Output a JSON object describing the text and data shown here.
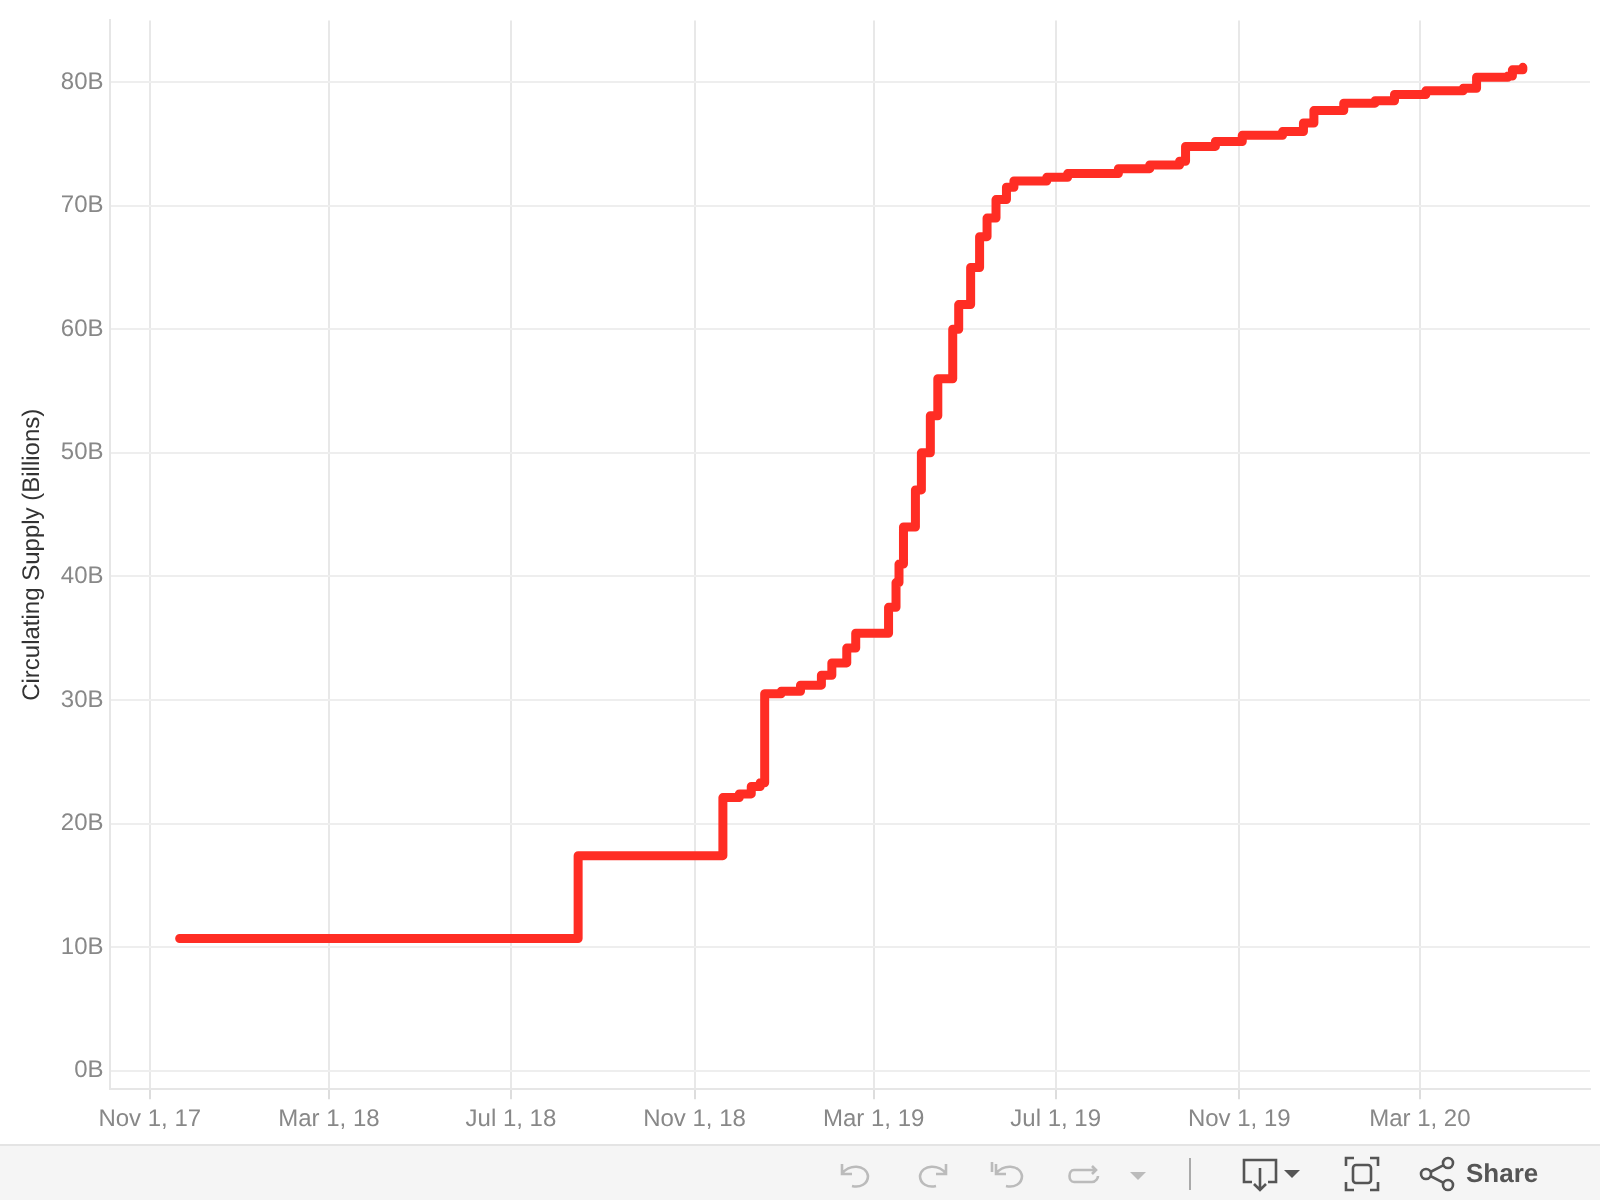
{
  "chart_data": {
    "type": "step",
    "ylabel": "Circulating Supply (Billions)",
    "x": [
      "2017-11-21",
      "2018-08-15",
      "2018-11-20",
      "2018-12-01",
      "2018-12-09",
      "2018-12-15",
      "2018-12-18",
      "2018-12-29",
      "2019-01-11",
      "2019-01-25",
      "2019-02-01",
      "2019-02-11",
      "2019-02-17",
      "2019-03-11",
      "2019-03-16",
      "2019-03-18",
      "2019-03-21",
      "2019-03-29",
      "2019-04-02",
      "2019-04-08",
      "2019-04-13",
      "2019-04-23",
      "2019-04-27",
      "2019-05-05",
      "2019-05-11",
      "2019-05-16",
      "2019-05-22",
      "2019-05-29",
      "2019-06-03",
      "2019-06-25",
      "2019-07-09",
      "2019-08-12",
      "2019-09-02",
      "2019-09-22",
      "2019-09-26",
      "2019-10-16",
      "2019-11-03",
      "2019-11-30",
      "2019-12-14",
      "2019-12-21",
      "2020-01-10",
      "2020-01-31",
      "2020-02-13",
      "2020-03-05",
      "2020-03-30",
      "2020-04-08",
      "2020-04-29",
      "2020-05-02",
      "2020-05-09"
    ],
    "series": [
      {
        "color": "#ff2d24",
        "values": [
          10.7,
          17.4,
          22.1,
          22.4,
          23.0,
          23.3,
          30.5,
          30.7,
          31.2,
          32.0,
          33.0,
          34.2,
          35.4,
          37.5,
          39.5,
          41.0,
          44.0,
          47.0,
          50.0,
          53.0,
          56.0,
          60.0,
          62.0,
          65.0,
          67.5,
          69.0,
          70.5,
          71.5,
          72.0,
          72.3,
          72.6,
          73.0,
          73.3,
          73.6,
          74.8,
          75.2,
          75.7,
          76.0,
          76.7,
          77.7,
          78.3,
          78.5,
          79.0,
          79.3,
          79.5,
          80.4,
          80.5,
          81.0,
          81.2
        ]
      }
    ],
    "xlim": [
      "2017-10-05",
      "2020-06-23"
    ],
    "xticks": [
      {
        "value": "2017-11-01",
        "label": "Nov 1, 17"
      },
      {
        "value": "2018-03-01",
        "label": "Mar 1, 18"
      },
      {
        "value": "2018-07-01",
        "label": "Jul 1, 18"
      },
      {
        "value": "2018-11-01",
        "label": "Nov 1, 18"
      },
      {
        "value": "2019-03-01",
        "label": "Mar 1, 19"
      },
      {
        "value": "2019-07-01",
        "label": "Jul 1, 19"
      },
      {
        "value": "2019-11-01",
        "label": "Nov 1, 19"
      },
      {
        "value": "2020-03-01",
        "label": "Mar 1, 20"
      }
    ],
    "ylim": [
      -1.5,
      85
    ],
    "yticks": [
      {
        "value": 0,
        "label": "0B"
      },
      {
        "value": 10,
        "label": "10B"
      },
      {
        "value": 20,
        "label": "20B"
      },
      {
        "value": 30,
        "label": "30B"
      },
      {
        "value": 40,
        "label": "40B"
      },
      {
        "value": 50,
        "label": "50B"
      },
      {
        "value": 60,
        "label": "60B"
      },
      {
        "value": 70,
        "label": "70B"
      },
      {
        "value": 80,
        "label": "80B"
      }
    ],
    "grid": true,
    "legend": false,
    "marker": "none",
    "line_style": "solid",
    "annotations": [
      "Share"
    ]
  }
}
